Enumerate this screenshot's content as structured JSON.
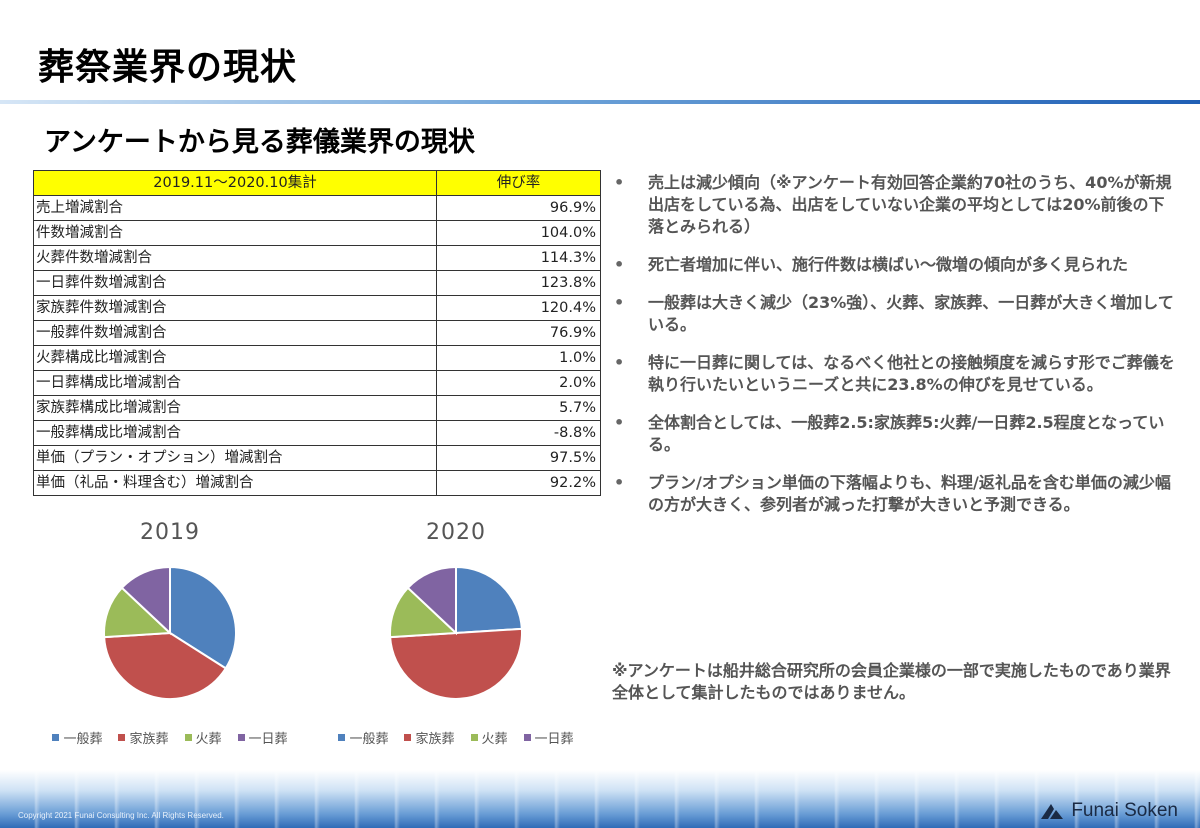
{
  "page_title": "葬祭業界の現状",
  "subtitle": "アンケートから見る葬儀業界の現状",
  "table": {
    "headers": [
      "2019.11～2020.10集計",
      "伸び率"
    ],
    "rows": [
      {
        "label": "売上増減割合",
        "value": "96.9%"
      },
      {
        "label": "件数増減割合",
        "value": "104.0%"
      },
      {
        "label": "火葬件数増減割合",
        "value": "114.3%"
      },
      {
        "label": "一日葬件数増減割合",
        "value": "123.8%"
      },
      {
        "label": "家族葬件数増減割合",
        "value": "120.4%"
      },
      {
        "label": "一般葬件数増減割合",
        "value": "76.9%"
      },
      {
        "label": "火葬構成比増減割合",
        "value": "1.0%"
      },
      {
        "label": "一日葬構成比増減割合",
        "value": "2.0%"
      },
      {
        "label": "家族葬構成比増減割合",
        "value": "5.7%"
      },
      {
        "label": "一般葬構成比増減割合",
        "value": "-8.8%"
      },
      {
        "label": "単価（プラン・オプション）増減割合",
        "value": "97.5%"
      },
      {
        "label": "単価（礼品・料理含む）増減割合",
        "value": "92.2%"
      }
    ]
  },
  "chart_data": [
    {
      "type": "pie",
      "title": "2019",
      "categories": [
        "一般葬",
        "家族葬",
        "火葬",
        "一日葬"
      ],
      "values": [
        34,
        40,
        13,
        13
      ],
      "colors": [
        "#4f81bd",
        "#c0504d",
        "#9bbb59",
        "#8064a2"
      ]
    },
    {
      "type": "pie",
      "title": "2020",
      "categories": [
        "一般葬",
        "家族葬",
        "火葬",
        "一日葬"
      ],
      "values": [
        24,
        50,
        13,
        13
      ],
      "colors": [
        "#4f81bd",
        "#c0504d",
        "#9bbb59",
        "#8064a2"
      ]
    }
  ],
  "bullet_marker": "•",
  "bullets": [
    "売上は減少傾向（※アンケート有効回答企業約70社のうち、40%が新規出店をしている為、出店をしていない企業の平均としては20%前後の下落とみられる）",
    "死亡者増加に伴い、施行件数は横ばい～微増の傾向が多く見られた",
    "一般葬は大きく減少（23%強）、火葬、家族葬、一日葬が大きく増加している。",
    "特に一日葬に関しては、なるべく他社との接触頻度を減らす形でご葬儀を執り行いたいというニーズと共に23.8%の伸びを見せている。",
    "全体割合としては、一般葬2.5:家族葬5:火葬/一日葬2.5程度となっている。",
    "プラン/オプション単価の下落幅よりも、料理/返礼品を含む単価の減少幅の方が大きく、参列者が減った打撃が大きいと予測できる。"
  ],
  "note": "※アンケートは船井総合研究所の会員企業様の一部で実施したものであり業界全体として集計したものではありません。",
  "footer": {
    "copyright": "Copyright 2021 Funai Consulting Inc. All Rights Reserved.",
    "brand": "Funai Soken"
  }
}
